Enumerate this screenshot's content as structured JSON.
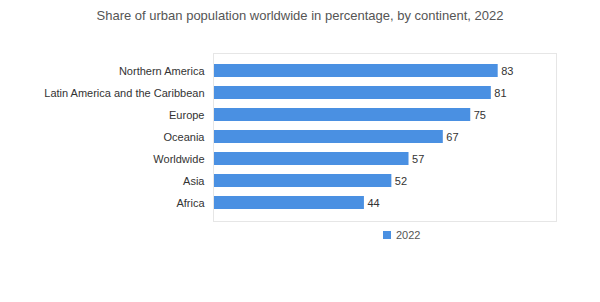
{
  "chart_data": {
    "type": "bar",
    "title": "Share of urban population worldwide in percentage, by continent, 2022",
    "orientation": "horizontal",
    "categories": [
      "Northern America",
      "Latin America and the Caribbean",
      "Europe",
      "Oceania",
      "Worldwide",
      "Asia",
      "Africa"
    ],
    "series": [
      {
        "name": "2022",
        "color": "#4a90e2",
        "values": [
          83,
          81,
          75,
          67,
          57,
          52,
          44
        ]
      }
    ],
    "xlim": [
      0,
      100
    ],
    "data_labels": true,
    "tick_labels": "y",
    "grid": false,
    "legend": "bottom"
  }
}
